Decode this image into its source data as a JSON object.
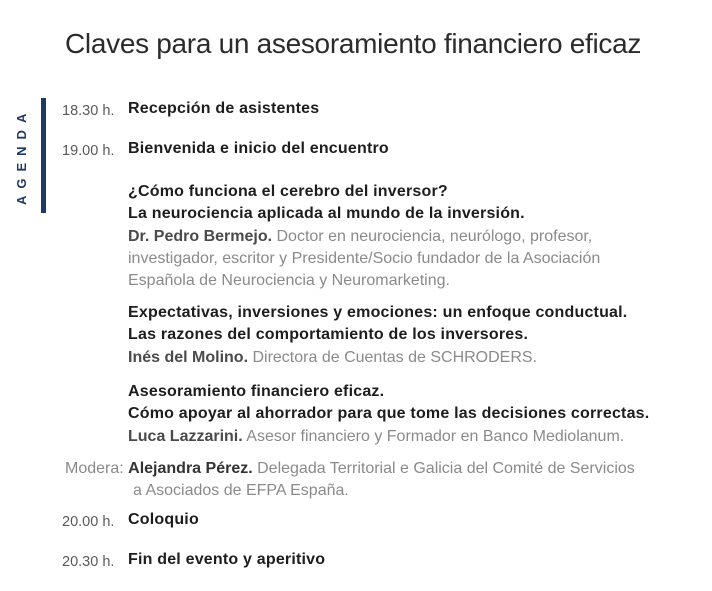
{
  "title": "Claves para un asesoramiento financiero eficaz",
  "rail": {
    "label": "AGENDA"
  },
  "colors": {
    "accent_navy": "#1f3864",
    "headline_text": "#1d1d1d",
    "muted_text": "#8a8a8a",
    "time_text": "#595959"
  },
  "agenda": {
    "items": [
      {
        "time": "18.30 h.",
        "title": "Recepción de asistentes"
      },
      {
        "time": "19.00 h.",
        "title": "Bienvenida e inicio del encuentro"
      },
      {
        "title_line1": "¿Cómo funciona el cerebro del inversor?",
        "title_line2": "La neurociencia aplicada al mundo de la inversión.",
        "speaker": "Dr. Pedro Bermejo.",
        "speaker_desc": "Doctor en neurociencia, neurólogo, profesor, investigador, escritor y Presidente/Socio fundador de la Asociación Española de Neurociencia y Neuromarketing."
      },
      {
        "title_line1": "Expectativas, inversiones y emociones: un enfoque conductual.",
        "title_line2": "Las razones del comportamiento de los inversores.",
        "speaker": "Inés del Molino.",
        "speaker_desc": "Directora de Cuentas de SCHRODERS."
      },
      {
        "title_line1": "Asesoramiento financiero eficaz.",
        "title_line2": "Cómo apoyar al ahorrador para que tome las decisiones correctas.",
        "speaker": "Luca Lazzarini.",
        "speaker_desc": "Asesor financiero y Formador en Banco Mediolanum."
      },
      {
        "label": "Modera:",
        "name": "Alejandra Pérez.",
        "desc_line1": "Delegada Territorial e Galicia del Comité de Servicios",
        "desc_line2": "a Asociados de EFPA España."
      },
      {
        "time": "20.00 h.",
        "title": "Coloquio"
      },
      {
        "time": "20.30 h.",
        "title": "Fin del evento y aperitivo"
      }
    ]
  }
}
